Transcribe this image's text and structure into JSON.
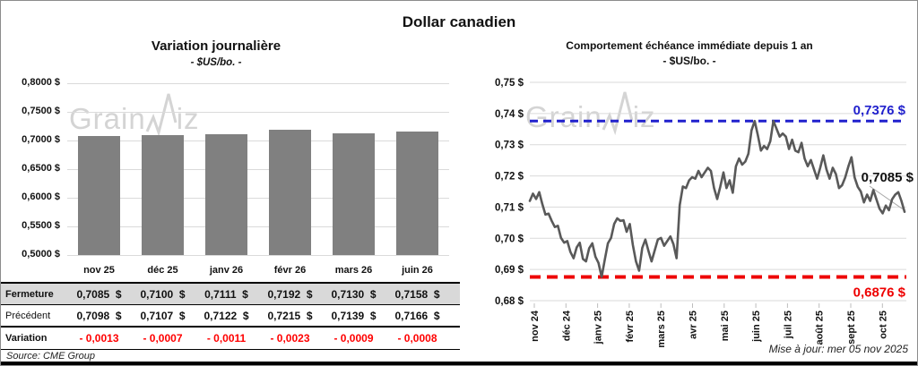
{
  "title": "Dollar canadien",
  "left_chart": {
    "title": "Variation  journalière",
    "subtitle": "- $US/bo. -"
  },
  "right_chart": {
    "title": "Comportement échéance immédiate depuis 1 an",
    "subtitle": "- $US/bo. -",
    "resistance_label": "0,7376 $",
    "current_label": "0,7085 $",
    "support_label": "0,6876 $"
  },
  "watermark": {
    "prefix": "Grain",
    "suffix": "iz"
  },
  "table": {
    "columns": [
      "nov 25",
      "déc 25",
      "janv 26",
      "févr 26",
      "mars 26",
      "juin 26"
    ],
    "rows": [
      {
        "label": "Fermeture",
        "shaded": true,
        "bold_label": true,
        "red": false,
        "cells": [
          "0,7085  $",
          "0,7100  $",
          "0,7111  $",
          "0,7192  $",
          "0,7130  $",
          "0,7158  $"
        ]
      },
      {
        "label": "Précédent",
        "shaded": false,
        "bold_label": false,
        "red": false,
        "cells": [
          "0,7098  $",
          "0,7107  $",
          "0,7122  $",
          "0,7215  $",
          "0,7139  $",
          "0,7166  $"
        ]
      },
      {
        "label": "Variation",
        "shaded": false,
        "bold_label": true,
        "red": true,
        "cells": [
          "- 0,0013",
          "- 0,0007",
          "- 0,0011",
          "- 0,0023",
          "- 0,0009",
          "- 0,0008"
        ]
      }
    ]
  },
  "source": "Source: CME Group",
  "updated": "Mise à jour: mer 05 nov 2025",
  "chart_data": [
    {
      "type": "bar",
      "title": "Variation journalière",
      "subtitle": "- $US/bo. -",
      "categories": [
        "nov 25",
        "déc 25",
        "janv 26",
        "févr 26",
        "mars 26",
        "juin 26"
      ],
      "values": [
        0.7085,
        0.71,
        0.7111,
        0.7192,
        0.713,
        0.7158
      ],
      "ylim": [
        0.5,
        0.8
      ],
      "bar_color": "#808080",
      "y_ticks": [
        {
          "label": "0,8000 $",
          "value": 0.8
        },
        {
          "label": "0,7500 $",
          "value": 0.75
        },
        {
          "label": "0,7000 $",
          "value": 0.7
        },
        {
          "label": "0,6500 $",
          "value": 0.65
        },
        {
          "label": "0,6000 $",
          "value": 0.6
        },
        {
          "label": "0,5500 $",
          "value": 0.55
        },
        {
          "label": "0,5000 $",
          "value": 0.5
        }
      ]
    },
    {
      "type": "line",
      "title": "Comportement échéance immédiate depuis 1 an",
      "subtitle": "- $US/bo. -",
      "x_months": [
        "nov 24",
        "déc 24",
        "janv 25",
        "févr 25",
        "mars 25",
        "avr 25",
        "mai 25",
        "juin 25",
        "juil 25",
        "août 25",
        "sept 25",
        "oct 25"
      ],
      "ylim": [
        0.68,
        0.75
      ],
      "line_color": "#595959",
      "resistance": 0.7376,
      "support": 0.6876,
      "last_value": 0.7085,
      "resistance_color": "#2121cd",
      "support_color": "#ee0000",
      "y_ticks": [
        {
          "label": "0,75 $",
          "value": 0.75
        },
        {
          "label": "0,74 $",
          "value": 0.74
        },
        {
          "label": "0,73 $",
          "value": 0.73
        },
        {
          "label": "0,72 $",
          "value": 0.72
        },
        {
          "label": "0,71 $",
          "value": 0.71
        },
        {
          "label": "0,70 $",
          "value": 0.7
        },
        {
          "label": "0,69 $",
          "value": 0.69
        },
        {
          "label": "0,68 $",
          "value": 0.68
        }
      ],
      "values": [
        0.712,
        0.7143,
        0.7126,
        0.7148,
        0.711,
        0.7076,
        0.7079,
        0.7056,
        0.7036,
        0.704,
        0.7001,
        0.6986,
        0.6991,
        0.6956,
        0.6936,
        0.6971,
        0.6986,
        0.6934,
        0.6926,
        0.6968,
        0.6984,
        0.6941,
        0.6921,
        0.6876,
        0.6931,
        0.6984,
        0.7001,
        0.7046,
        0.7064,
        0.7056,
        0.7058,
        0.7021,
        0.7046,
        0.6979,
        0.6926,
        0.6896,
        0.6969,
        0.6996,
        0.6959,
        0.6926,
        0.6961,
        0.6996,
        0.7001,
        0.6976,
        0.6991,
        0.7006,
        0.6981,
        0.6936,
        0.7106,
        0.7166,
        0.7161,
        0.7186,
        0.7196,
        0.7191,
        0.7216,
        0.7196,
        0.7211,
        0.7226,
        0.7216,
        0.7161,
        0.7126,
        0.7166,
        0.7211,
        0.7161,
        0.7186,
        0.7146,
        0.7231,
        0.7256,
        0.7236,
        0.7246,
        0.7271,
        0.7346,
        0.7376,
        0.7331,
        0.7281,
        0.7296,
        0.7286,
        0.7311,
        0.7376,
        0.7351,
        0.7326,
        0.7336,
        0.7326,
        0.7286,
        0.7316,
        0.7281,
        0.7276,
        0.7306,
        0.7256,
        0.7231,
        0.7251,
        0.7221,
        0.7191,
        0.7226,
        0.7266,
        0.7221,
        0.7191,
        0.7226,
        0.7206,
        0.7161,
        0.717,
        0.7195,
        0.723,
        0.726,
        0.7195,
        0.7165,
        0.715,
        0.7115,
        0.714,
        0.712,
        0.7155,
        0.7125,
        0.7095,
        0.708,
        0.7105,
        0.709,
        0.7125,
        0.714,
        0.7148,
        0.712,
        0.7085
      ]
    }
  ]
}
